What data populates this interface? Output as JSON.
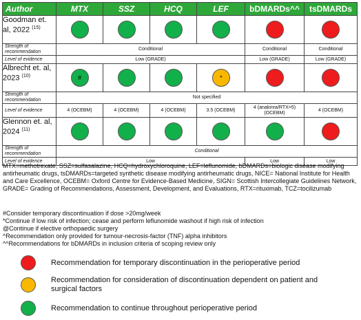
{
  "table": {
    "headers": {
      "author": "Author",
      "mtx": "MTX",
      "ssz": "SSZ",
      "hcq": "HCQ",
      "lef": "LEF",
      "bdmards": "bDMARDs^^",
      "tsdmards": "tsDMARDs"
    },
    "rows": [
      {
        "study": "Goodman et. al, 2022",
        "ref": "(15)",
        "strength_label": "Strength of recommendation",
        "strength_csdmard": "Conditional",
        "strength_bdmard": "Conditional",
        "strength_tsdmard": "Conditional",
        "evidence_label": "Level of evidence",
        "evidence_csdmard": "Low (GRADE)",
        "evidence_bdmard": "Low (GRADE)",
        "evidence_tsdmard": "Low (GRADE)"
      },
      {
        "study": "Albrecht et. al, 2023",
        "ref": "(10)",
        "mtx_mark": "#",
        "lef_mark": "*",
        "strength_label": "Strength of recommendation",
        "strength_all": "Not specified",
        "evidence_label": "Level of evidence",
        "evidence_mtx": "4 (OCEBM)",
        "evidence_ssz": "4 (OCEBM)",
        "evidence_hcq": "4 (OCEBM)",
        "evidence_lef": "3.5 (OCEBM)",
        "evidence_bdmard_1": "4 (anakinra/RTX=5)",
        "evidence_bdmard_2": "(OCEBM)",
        "evidence_tsdmard": "4 (OCEBM)"
      },
      {
        "study": "Glennon et. al, 2024",
        "ref": "(11)",
        "strength_label": "Strength of recommendation",
        "strength_csdmard": "Conditional",
        "evidence_label": "Level of evidence",
        "evidence_csdmard": "Low",
        "evidence_bdmard": "Low",
        "evidence_tsdmard": "Low"
      }
    ]
  },
  "abbreviations": "MTX=methotrexate, SSZ=sulfasalazine, HCQ=hydroxychloroquine, LEF=leflunomide, bDMARDs=biologic disease modifying antirheumatic drugs, tsDMARDs=targeted synthetic disease modifying antirheumatic drugs, NICE= National Institute for Health and Care Excellence, OCEBM= Oxford Centre for Evidence-Based Medicine, SIGN= Scottish Intercollegiate Guidelines Network, GRADE= Grading of Recommendations, Assessment, Development, and Evaluations, RTX=rituximab, TCZ=tocilizumab",
  "footnotes": [
    "#Consider temporary discontinuation if dose >20mg/week",
    "*Continue if low risk of infection; cease and perform leflunomide washout if high risk of infection",
    "@Continue if elective orthopaedic surgery",
    "^Recommendation only provided for tumour-necrosis-factor (TNF) alpha inhibitors",
    "^^Recommendations for bDMARDs in inclusion criteria of scoping review only"
  ],
  "legend": [
    {
      "color": "red",
      "text": "Recommendation for temporary discontinuation in the perioperative period"
    },
    {
      "color": "amber",
      "text": "Recommendation for consideration of discontinuation dependent on patient and surgical factors"
    },
    {
      "color": "green",
      "text": "Recommendation to continue throughout perioperative period"
    }
  ],
  "colors": {
    "header": "#2fa83a",
    "green": "#12b04a",
    "red": "#ee1c1c",
    "amber": "#f9b800"
  }
}
